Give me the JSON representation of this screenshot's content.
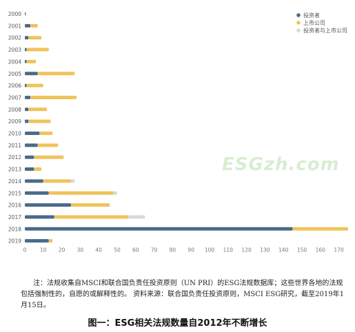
{
  "chart_data": {
    "type": "bar",
    "orientation": "horizontal",
    "stacked": true,
    "categories": [
      "2000",
      "2001",
      "2002",
      "2003",
      "2004",
      "2005",
      "2006",
      "2007",
      "2008",
      "2009",
      "2010",
      "2011",
      "2012",
      "2013",
      "2014",
      "2015",
      "2016",
      "2017",
      "2018",
      "2019"
    ],
    "series": [
      {
        "name": "投资者",
        "color": "#4a6b8a",
        "values": [
          0.5,
          3,
          2,
          1,
          1,
          7,
          1,
          3,
          2,
          2,
          8,
          7,
          5,
          5,
          10,
          13,
          25,
          16,
          145,
          13
        ]
      },
      {
        "name": "上市公司",
        "color": "#f0c35a",
        "values": [
          0,
          4,
          7,
          12,
          5,
          20,
          9,
          25,
          10,
          12,
          7,
          11,
          16,
          4,
          15,
          35,
          21,
          40,
          30,
          2
        ]
      },
      {
        "name": "投资者与上市公司",
        "color": "#d9d9d9",
        "values": [
          0,
          0,
          0,
          0,
          0,
          0,
          0,
          0,
          0,
          0,
          0,
          0,
          0,
          0,
          2,
          2,
          0,
          9,
          0,
          0
        ]
      }
    ],
    "xlim": [
      0,
      175
    ],
    "xticks": [
      0,
      10,
      20,
      30,
      40,
      50,
      60,
      70,
      80,
      90,
      100,
      110,
      120,
      130,
      140,
      150,
      160,
      170
    ],
    "grid": false,
    "legend_position": "top-right"
  },
  "note": "注：法规收集自MSCI和联合国负责任投资原则（UN PRI）的ESG法规数据库；这些世界各地的法规包括强制性的，自愿的或解释性的。 资料来源：联合国负责任投资原则，MSCI ESG研究，截至2019年1月15日。",
  "caption": "图一：ESG相关法规数量自2012年不断增长",
  "watermark": "ESGzh.com"
}
